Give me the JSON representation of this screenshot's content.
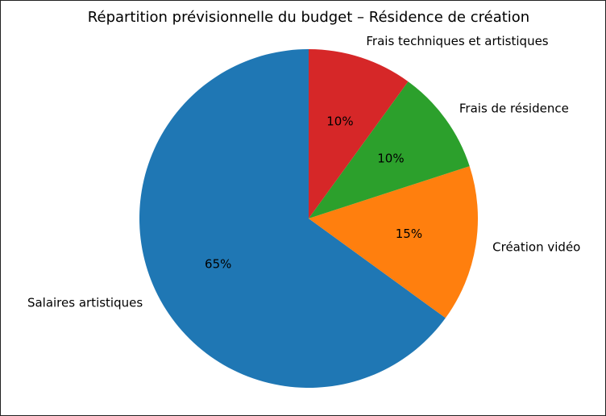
{
  "chart_data": {
    "type": "pie",
    "title": "Répartition prévisionnelle du budget – Résidence de création",
    "categories": [
      "Salaires artistiques",
      "Création vidéo",
      "Frais de résidence",
      "Frais techniques et artistiques"
    ],
    "values": [
      65,
      15,
      10,
      10
    ],
    "value_labels": [
      "65%",
      "15%",
      "10%",
      "10%"
    ],
    "colors": [
      "#1f77b4",
      "#ff7f0e",
      "#2ca02c",
      "#d62728"
    ]
  }
}
